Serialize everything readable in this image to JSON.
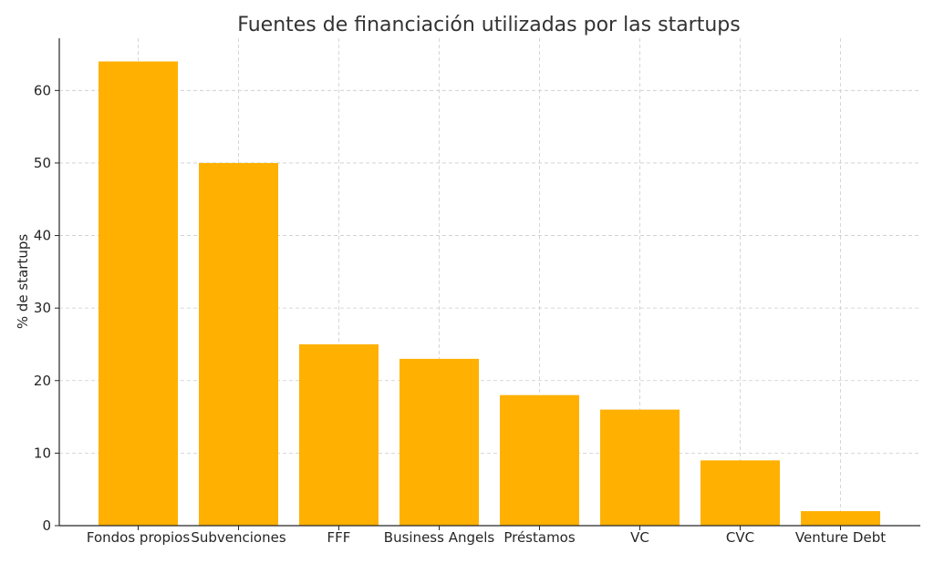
{
  "chart_data": {
    "type": "bar",
    "title": "Fuentes de financiación utilizadas por las startups",
    "xlabel": "",
    "ylabel": "% de startups",
    "categories": [
      "Fondos propios",
      "Subvenciones",
      "FFF",
      "Business Angels",
      "Préstamos",
      "VC",
      "CVC",
      "Venture Debt"
    ],
    "values": [
      64,
      50,
      25,
      23,
      18,
      16,
      9,
      2
    ],
    "ylim": [
      0,
      67.2
    ],
    "yticks": [
      0,
      10,
      20,
      30,
      40,
      50,
      60
    ],
    "grid": true,
    "bar_color": "#FFB000"
  }
}
